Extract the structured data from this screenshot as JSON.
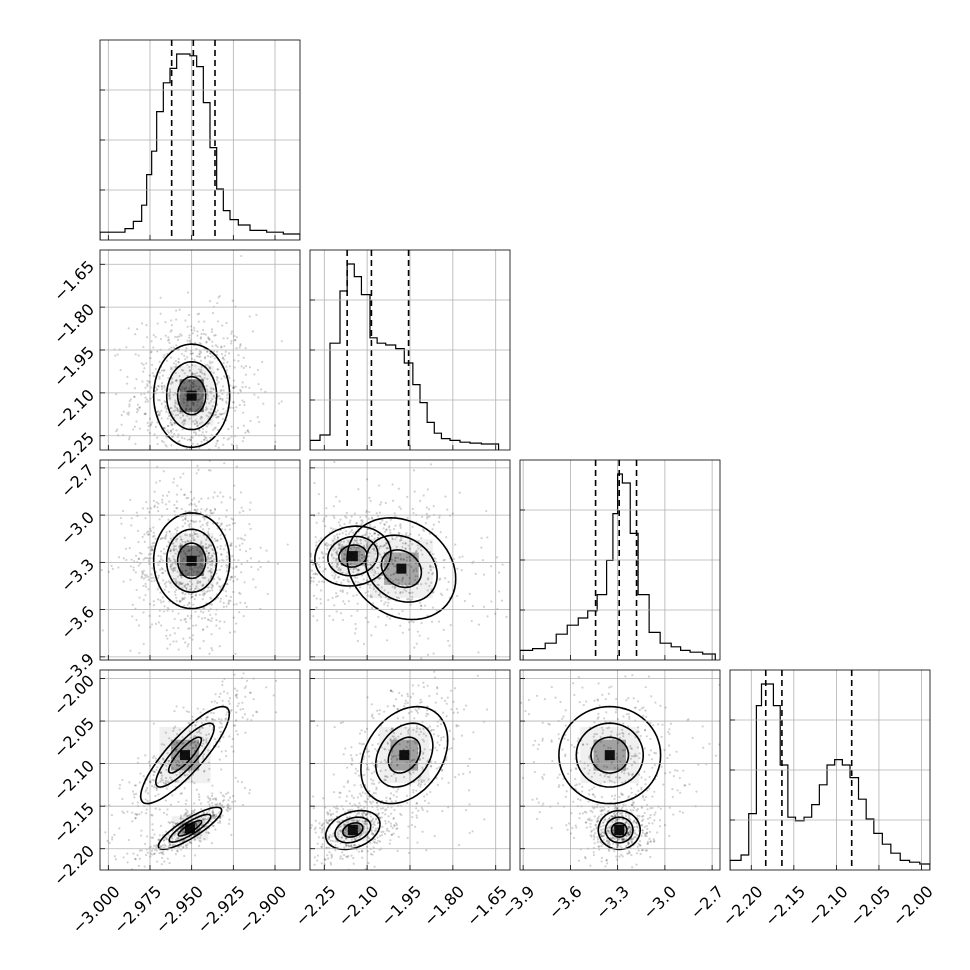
{
  "chart_data": {
    "type": "corner",
    "parameters": [
      {
        "range": [
          -3.005,
          -2.885
        ],
        "ticks": [
          -3.0,
          -2.975,
          -2.95,
          -2.925,
          -2.9
        ],
        "tick_labels": [
          "−3.000",
          "−2.975",
          "−2.950",
          "−2.925",
          "−2.900"
        ],
        "quantiles": [
          -2.962,
          -2.949,
          -2.936
        ],
        "hist_edges": [
          -3.005,
          -2.99,
          -2.985,
          -2.98,
          -2.977,
          -2.974,
          -2.971,
          -2.967,
          -2.963,
          -2.959,
          -2.955,
          -2.951,
          -2.947,
          -2.943,
          -2.939,
          -2.935,
          -2.931,
          -2.927,
          -2.922,
          -2.915,
          -2.905,
          -2.895,
          -2.885
        ],
        "hist_values": [
          0.01,
          0.03,
          0.07,
          0.16,
          0.33,
          0.46,
          0.68,
          0.84,
          0.92,
          1.0,
          1.0,
          0.99,
          0.93,
          0.73,
          0.48,
          0.25,
          0.13,
          0.08,
          0.05,
          0.02,
          0.01,
          0.0
        ]
      },
      {
        "range": [
          -2.3,
          -1.6
        ],
        "ticks": [
          -2.25,
          -2.1,
          -1.95,
          -1.8,
          -1.65
        ],
        "tick_labels": [
          "−2.25",
          "−2.10",
          "−1.95",
          "−1.80",
          "−1.65"
        ],
        "quantiles": [
          -2.17,
          -2.085,
          -1.955
        ],
        "hist_edges": [
          -2.3,
          -2.265,
          -2.23,
          -2.195,
          -2.17,
          -2.145,
          -2.12,
          -2.09,
          -2.065,
          -2.035,
          -2.0,
          -1.97,
          -1.94,
          -1.915,
          -1.89,
          -1.865,
          -1.84,
          -1.81,
          -1.775,
          -1.74,
          -1.7,
          -1.64
        ],
        "hist_values": [
          0.02,
          0.05,
          0.56,
          0.85,
          1.0,
          0.93,
          0.83,
          0.59,
          0.56,
          0.55,
          0.53,
          0.45,
          0.33,
          0.23,
          0.12,
          0.06,
          0.03,
          0.02,
          0.01,
          0.005,
          0.0
        ]
      },
      {
        "range": [
          -3.92,
          -2.65
        ],
        "ticks": [
          -3.9,
          -3.6,
          -3.3,
          -3.0,
          -2.7
        ],
        "tick_labels": [
          "−3.9",
          "−3.6",
          "−3.3",
          "−3.0",
          "−2.7"
        ],
        "quantiles": [
          -3.44,
          -3.29,
          -3.18
        ],
        "hist_edges": [
          -3.92,
          -3.84,
          -3.76,
          -3.69,
          -3.62,
          -3.55,
          -3.49,
          -3.43,
          -3.37,
          -3.33,
          -3.3,
          -3.27,
          -3.22,
          -3.17,
          -3.1,
          -3.03,
          -2.96,
          -2.9,
          -2.84,
          -2.76,
          -2.68
        ],
        "hist_values": [
          0.02,
          0.03,
          0.06,
          0.11,
          0.16,
          0.2,
          0.24,
          0.33,
          0.52,
          0.78,
          1.0,
          0.95,
          0.67,
          0.33,
          0.12,
          0.06,
          0.04,
          0.02,
          0.01,
          0.0
        ]
      },
      {
        "range": [
          -2.225,
          -1.99
        ],
        "ticks": [
          -2.2,
          -2.15,
          -2.1,
          -2.05,
          -2.0
        ],
        "tick_labels": [
          "−2.20",
          "−2.15",
          "−2.10",
          "−2.05",
          "−2.00"
        ],
        "quantiles": [
          -2.183,
          -2.164,
          -2.082
        ],
        "hist_edges": [
          -2.225,
          -2.212,
          -2.203,
          -2.194,
          -2.188,
          -2.181,
          -2.174,
          -2.166,
          -2.157,
          -2.148,
          -2.138,
          -2.129,
          -2.12,
          -2.111,
          -2.102,
          -2.093,
          -2.084,
          -2.074,
          -2.065,
          -2.056,
          -2.046,
          -2.036,
          -2.025,
          -2.014,
          -2.002,
          -1.99
        ],
        "hist_values": [
          0.02,
          0.05,
          0.28,
          0.88,
          1.0,
          1.0,
          0.88,
          0.55,
          0.26,
          0.24,
          0.26,
          0.33,
          0.44,
          0.55,
          0.58,
          0.55,
          0.48,
          0.36,
          0.25,
          0.17,
          0.11,
          0.06,
          0.02,
          0.01,
          0.0
        ]
      }
    ],
    "pairs": [
      {
        "row": 1,
        "col": 0,
        "modes": [
          {
            "mx": -2.95,
            "my": -2.11,
            "sx": 0.012,
            "sy": 0.095,
            "rho": 0.0,
            "w": 1.0
          }
        ]
      },
      {
        "row": 2,
        "col": 0,
        "modes": [
          {
            "mx": -2.95,
            "my": -3.29,
            "sx": 0.012,
            "sy": 0.16,
            "rho": 0.0,
            "w": 1.0
          }
        ]
      },
      {
        "row": 2,
        "col": 1,
        "modes": [
          {
            "mx": -2.15,
            "my": -3.26,
            "sx": 0.07,
            "sy": 0.1,
            "rho": 0.1,
            "w": 0.55
          },
          {
            "mx": -1.98,
            "my": -3.34,
            "sx": 0.1,
            "sy": 0.17,
            "rho": -0.2,
            "w": 0.45
          }
        ]
      },
      {
        "row": 3,
        "col": 0,
        "modes": [
          {
            "mx": -2.951,
            "my": -2.176,
            "sx": 0.01,
            "sy": 0.013,
            "rho": 0.85,
            "w": 0.5
          },
          {
            "mx": -2.954,
            "my": -2.09,
            "sx": 0.014,
            "sy": 0.03,
            "rho": 0.85,
            "w": 0.5
          }
        ]
      },
      {
        "row": 3,
        "col": 1,
        "modes": [
          {
            "mx": -2.15,
            "my": -2.178,
            "sx": 0.05,
            "sy": 0.012,
            "rho": 0.3,
            "w": 0.5
          },
          {
            "mx": -1.97,
            "my": -2.09,
            "sx": 0.08,
            "sy": 0.03,
            "rho": 0.3,
            "w": 0.5
          }
        ]
      },
      {
        "row": 3,
        "col": 2,
        "modes": [
          {
            "mx": -3.29,
            "my": -2.178,
            "sx": 0.07,
            "sy": 0.012,
            "rho": 0.0,
            "w": 0.5
          },
          {
            "mx": -3.35,
            "my": -2.09,
            "sx": 0.17,
            "sy": 0.03,
            "rho": 0.0,
            "w": 0.5
          }
        ]
      }
    ],
    "grid": true,
    "contour_color": "#000000",
    "hist_color": "#000000"
  }
}
